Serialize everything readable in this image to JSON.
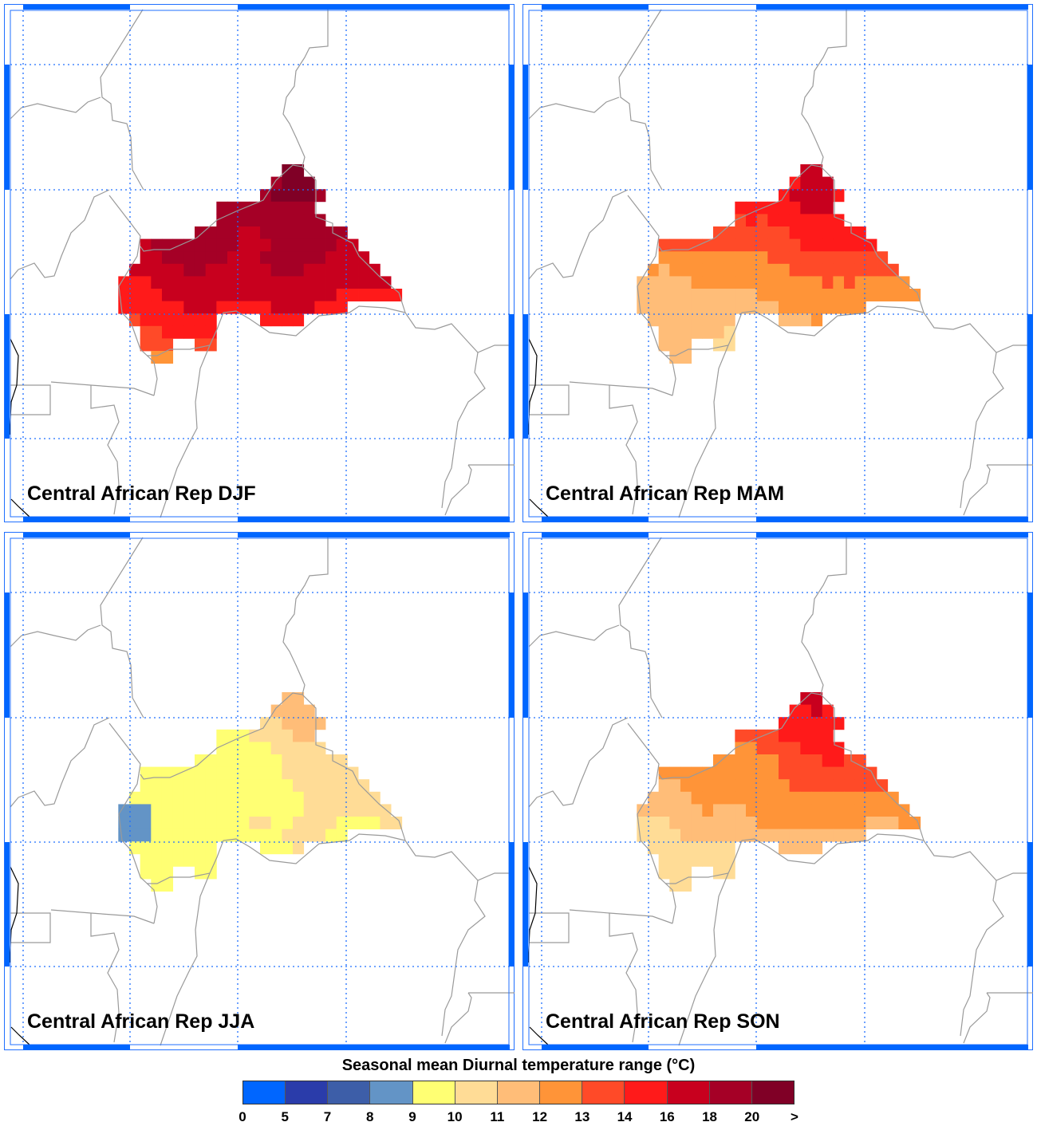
{
  "figure": {
    "panels": [
      {
        "title": "Central African Rep DJF",
        "season": "DJF",
        "cells": [
          "...............CC.........",
          "..............BCCC........",
          ".............BCCCCB.......",
          ".........BBBBBBBBB........",
          ".........BBBBBBBBBB.......",
          ".......BBBBAABBBBBBBB.....",
          "..ABBBBBBBBAAABBBBBBAA....",
          "..AABBBBBBAAABBBBBBAAAA...",
          ".AAAAABBAAAAAABBBAAAAAAA..",
          "999AAAAAAAAAAAAAAAAAAAAAA.",
          "9999AAAAAAAAAAAAAAAA999999",
          "999999AAA99999AAAA999.....",
          ".89999999....9999.........",
          "..8899999.................",
          "..888..88.................",
          "...77....................."
        ]
      },
      {
        "title": "Central African Rep MAM",
        "season": "MAM",
        "cells": [
          "...............AA.........",
          "..............9AAA........",
          ".............9AAAA9.......",
          ".........999999AAA........",
          ".........8989999999.......",
          ".......88888889999999.....",
          "..88888888888889999999....",
          "..777777777788888888888...",
          ".76777777777778888888888..",
          "6666677777777777787877777.",
          "66666666666777777777777777",
          "666666666666677777777.....",
          ".66666666....6667.........",
          "..6666665.................",
          "..666..55.................",
          "...66....................."
        ]
      },
      {
        "title": "Central African Rep JJA",
        "season": "JJA",
        "cells": [
          "...............66.........",
          "..............6666........",
          ".............556666.......",
          ".........444555566........",
          ".........4444455555.......",
          ".......44444444555555.....",
          "..44444444444445555555....",
          "..444444444444445555555...",
          ".44444444444444445555555..",
          "3334444444444444455555555.",
          "33344444444455445555444455",
          "333444444444444555544.....",
          ".44444444....4445.........",
          "..4444444.................",
          "..444..44.................",
          "...44....................."
        ]
      },
      {
        "title": "Central African Rep SON",
        "season": "SON",
        "cells": [
          "...............AA.........",
          "..............99A9........",
          ".............999999.......",
          ".........888899999........",
          ".........7788889999.......",
          ".......77777788889988.....",
          "..77777777777888888888....",
          "..667777777777888888888...",
          ".66667777777777777777777..",
          "6666667666777777777777777.",
          "55566666666777777777766677",
          "555566666666666666666.....",
          ".55555555....6666.........",
          "..5555555.................",
          "..555..55.................",
          "...55....................."
        ]
      }
    ]
  },
  "colorbar": {
    "title": "Seasonal mean Diurnal temperature range (°C)",
    "labels": [
      "0",
      "5",
      "7",
      "8",
      "9",
      "10",
      "11",
      "12",
      "13",
      "14",
      "16",
      "18",
      "20",
      ">"
    ],
    "colors": [
      "#0066ff",
      "#2a3caa",
      "#3d5ea8",
      "#6394c6",
      "#ffff73",
      "#ffdc96",
      "#ffbd78",
      "#ff9438",
      "#ff4a28",
      "#ff1a1a",
      "#c8001e",
      "#a50026",
      "#800026"
    ]
  }
}
